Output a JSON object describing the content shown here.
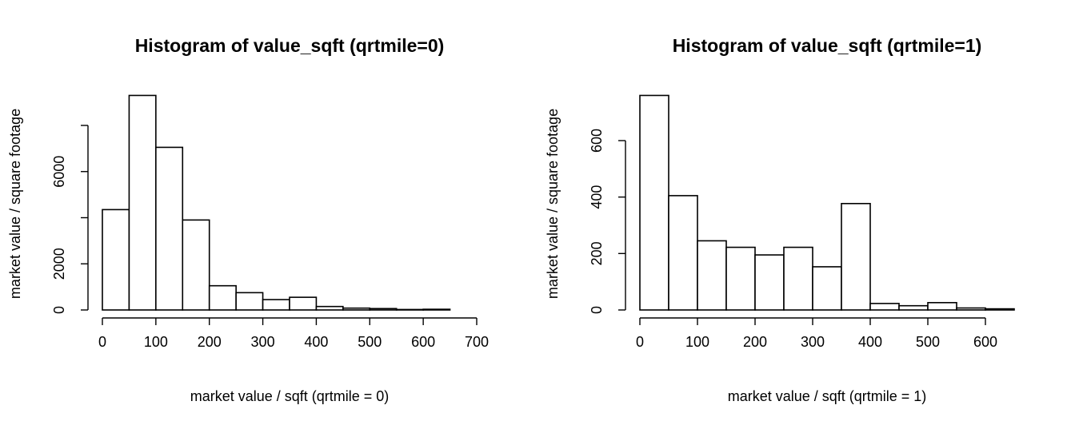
{
  "chart_data": [
    {
      "type": "bar",
      "title": "Histogram of value_sqft (qrtmile=0)",
      "xlabel": "market value / sqft (qrtmile = 0)",
      "ylabel": "market value / square footage",
      "bin_width": 50,
      "bins_start": 0,
      "values": [
        4350,
        9300,
        7050,
        3900,
        1050,
        750,
        450,
        550,
        150,
        80,
        60,
        20,
        30,
        0
      ],
      "xlim": [
        0,
        700
      ],
      "ylim": [
        0,
        8000
      ],
      "xticks": [
        0,
        100,
        200,
        300,
        400,
        500,
        600,
        700
      ],
      "yticks": [
        0,
        2000,
        6000
      ],
      "y_axis_top": 8000
    },
    {
      "type": "bar",
      "title": "Histogram of value_sqft (qrtmile=1)",
      "xlabel": "market value / sqft (qrtmile = 1)",
      "ylabel": "market value / square footage",
      "bin_width": 50,
      "bins_start": 0,
      "values": [
        760,
        405,
        245,
        222,
        195,
        222,
        153,
        377,
        23,
        15,
        26,
        7,
        4
      ],
      "xlim": [
        0,
        650
      ],
      "ylim": [
        0,
        600
      ],
      "xticks": [
        0,
        100,
        200,
        300,
        400,
        500,
        600
      ],
      "yticks": [
        0,
        200,
        400,
        600
      ],
      "y_axis_top": 600
    }
  ]
}
